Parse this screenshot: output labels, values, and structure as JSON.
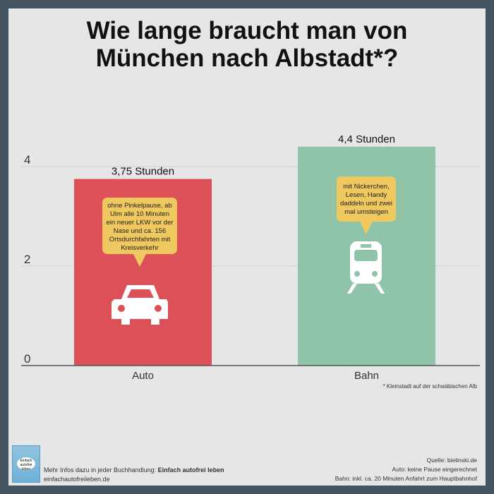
{
  "title_line1": "Wie lange braucht man von",
  "title_line2": "München nach Albstadt*?",
  "chart_data": {
    "type": "bar",
    "categories": [
      "Auto",
      "Bahn"
    ],
    "values": [
      3.75,
      4.4
    ],
    "data_labels": [
      "3,75 Stunden",
      "4,4 Stunden"
    ],
    "yticks": [
      0,
      2,
      4
    ],
    "ylim": [
      0,
      4.5
    ],
    "grid": true,
    "colors": [
      "#dc5157",
      "#8fc4a9"
    ],
    "annotations": [
      "ohne Pinkelpause, ab Ulm alle 10 Minuten ein neuer LKW vor der Nase und ca. 156 Ortsdurchfahrten mit Kreisverkehr",
      "mit Nickerchen, Lesen, Handy daddeln und zwei mal umsteigen"
    ],
    "icons": [
      "car-icon",
      "train-icon"
    ]
  },
  "footnote": "* Kleinstadt auf der schwäbischen Alb",
  "footer": {
    "more_info_prefix": "Mehr Infos dazu in jeder Buchhandlung: ",
    "book_title": "Einfach autofrei leben",
    "website": "einfachautofreileben.de",
    "source": "Quelle: bielinski.de",
    "note_auto": "Auto: keine Pause eingerechnet",
    "note_bahn": "Bahn: inkl. ca. 20 Minuten Anfahrt zum Hauptbahnhof",
    "book_cover_text": "Einfach autofrei leben"
  }
}
